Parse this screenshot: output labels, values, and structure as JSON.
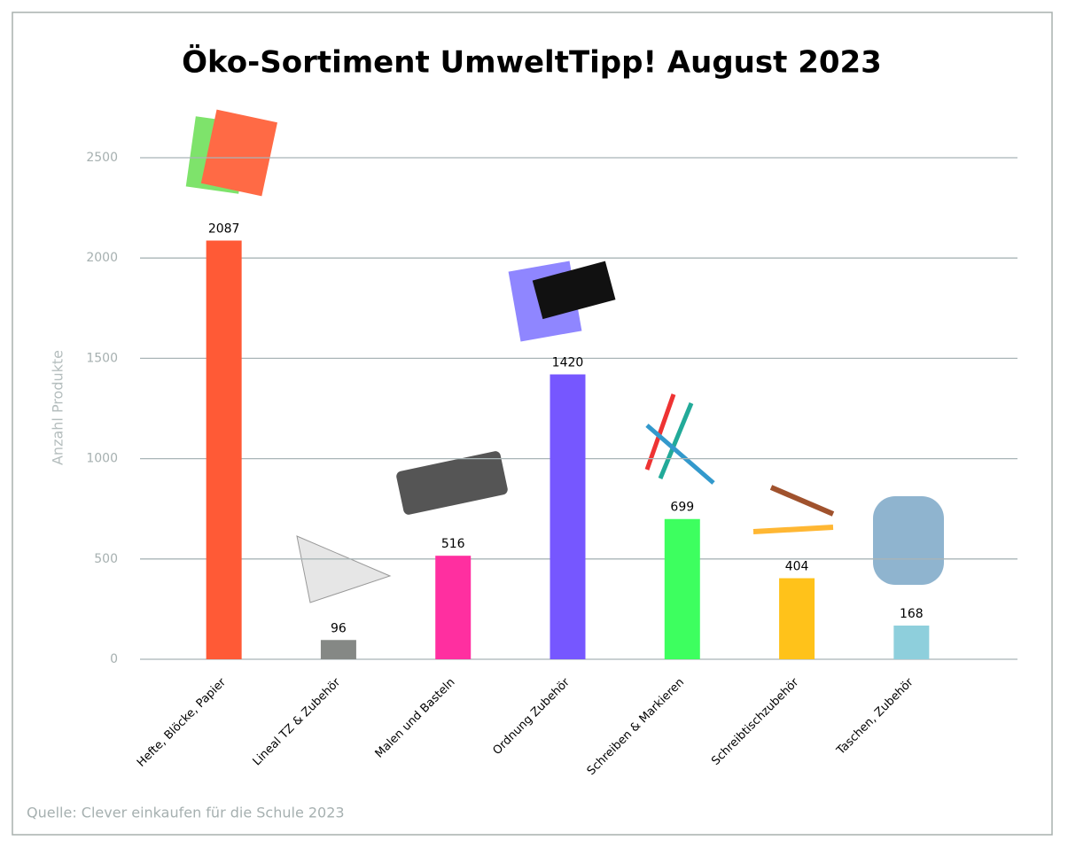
{
  "chart_data": {
    "type": "bar",
    "title": "Öko-Sortiment UmweltTipp! August 2023",
    "y_label": "Anzahl Produkte",
    "source": "Quelle: Clever einkaufen für die Schule 2023",
    "categories": [
      "Hefte, Blöcke, Papier",
      "Lineal TZ & Zubehör",
      "Malen und Basteln",
      "Ordnung Zubehör",
      "Schreiben & Markieren",
      "Schreibtischzubehör",
      "Taschen, Zubehör"
    ],
    "values": [
      2087,
      96,
      516,
      1420,
      699,
      404,
      168
    ],
    "colors": [
      "#ff5a36",
      "#858885",
      "#ff2fa0",
      "#7657ff",
      "#3dff5f",
      "#ffc21a",
      "#8ecfdc"
    ],
    "ylim": [
      0,
      2500
    ],
    "yticks": [
      0,
      500,
      1000,
      1500,
      2000,
      2500
    ],
    "grid": true
  }
}
